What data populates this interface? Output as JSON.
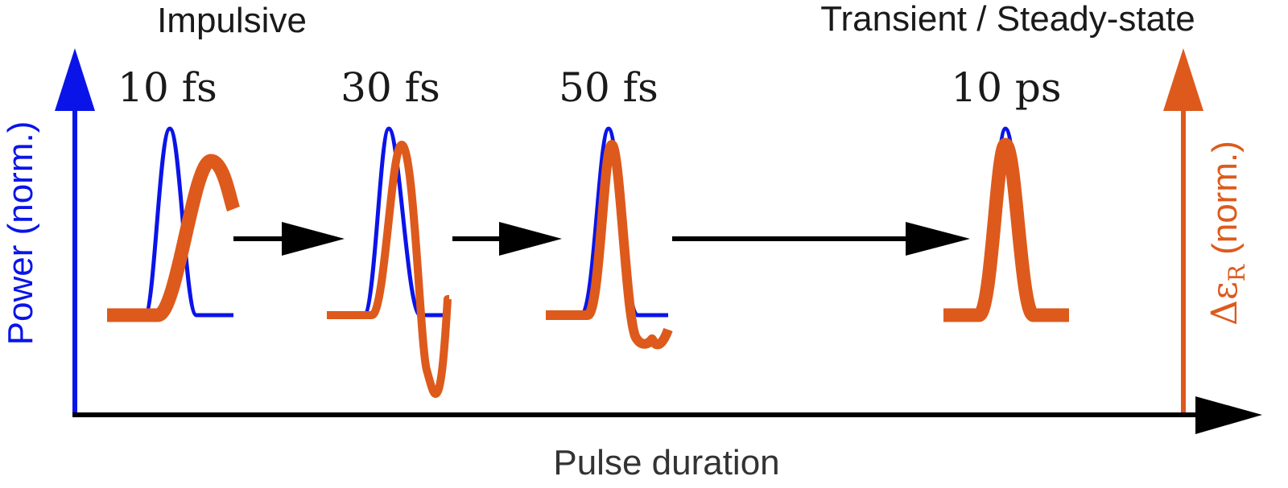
{
  "colors": {
    "power": "#0a14e8",
    "response": "#dd5a1c",
    "arrow": "#000000",
    "axis": "#000000"
  },
  "labels": {
    "left_regime": "Impulsive",
    "right_regime": "Transient / Steady-state",
    "x_axis": "Pulse duration",
    "y_left": "Power (norm.)",
    "y_right_prefix": "Δε",
    "y_right_subscript": "R",
    "y_right_suffix": " (norm.)"
  },
  "pulses": [
    {
      "duration": "10 fs"
    },
    {
      "duration": "30 fs"
    },
    {
      "duration": "50 fs"
    },
    {
      "duration": "10 ps"
    }
  ]
}
